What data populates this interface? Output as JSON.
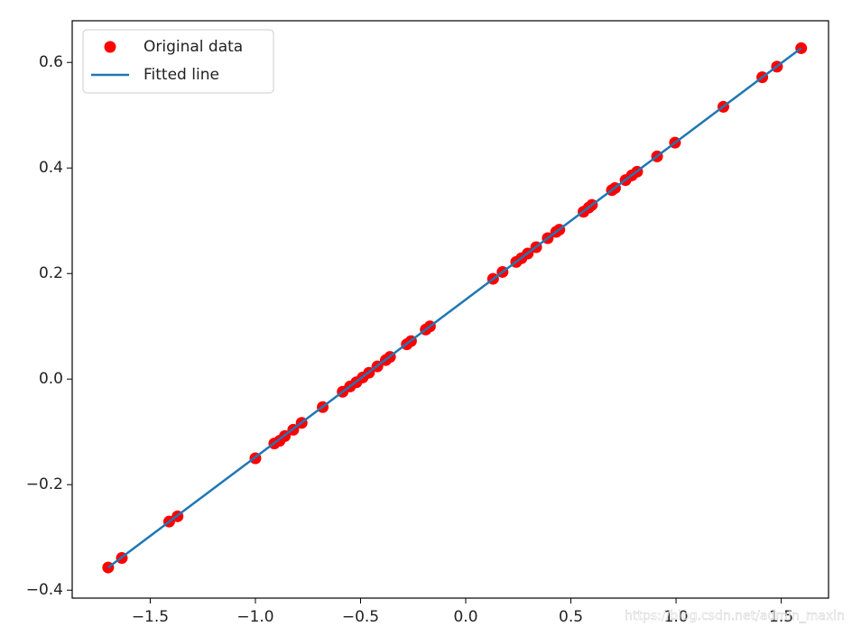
{
  "chart_data": {
    "type": "scatter-line",
    "series": [
      {
        "name": "Original data",
        "color": "#ff0000",
        "kind": "scatter",
        "x": [
          -1.7,
          -1.635,
          -1.41,
          -1.37,
          -1.0,
          -0.91,
          -0.885,
          -0.86,
          -0.82,
          -0.78,
          -0.68,
          -0.585,
          -0.55,
          -0.52,
          -0.49,
          -0.46,
          -0.42,
          -0.38,
          -0.36,
          -0.28,
          -0.26,
          -0.19,
          -0.17,
          0.13,
          0.175,
          0.24,
          0.265,
          0.295,
          0.335,
          0.39,
          0.43,
          0.445,
          0.56,
          0.585,
          0.6,
          0.695,
          0.71,
          0.76,
          0.79,
          0.815,
          0.91,
          0.995,
          1.225,
          1.41,
          1.48,
          1.595
        ],
        "values": [
          -0.357,
          -0.339,
          -0.27,
          -0.26,
          -0.15,
          -0.122,
          -0.117,
          -0.108,
          -0.096,
          -0.083,
          -0.053,
          -0.024,
          -0.014,
          -0.006,
          0.003,
          0.012,
          0.024,
          0.036,
          0.042,
          0.066,
          0.072,
          0.094,
          0.1,
          0.19,
          0.203,
          0.222,
          0.229,
          0.238,
          0.25,
          0.267,
          0.279,
          0.283,
          0.317,
          0.325,
          0.33,
          0.358,
          0.362,
          0.377,
          0.386,
          0.393,
          0.422,
          0.448,
          0.516,
          0.572,
          0.592,
          0.627
        ]
      },
      {
        "name": "Fitted line",
        "color": "#1f77b4",
        "kind": "line",
        "x": [
          -1.7,
          1.595
        ],
        "values": [
          -0.357,
          0.627
        ]
      }
    ],
    "xlim": [
      -1.871,
      1.725
    ],
    "ylim": [
      -0.415,
      0.679
    ],
    "xticks": [
      {
        "value": -1.5,
        "label": "−1.5"
      },
      {
        "value": -1.0,
        "label": "−1.0"
      },
      {
        "value": -0.5,
        "label": "−0.5"
      },
      {
        "value": 0.0,
        "label": "0.0"
      },
      0.5,
      {
        "value": 1.0,
        "label": "1.0"
      },
      1.5
    ],
    "yticks": [
      {
        "value": -0.4,
        "label": "−0.4"
      },
      {
        "value": -0.2,
        "label": "−0.2"
      },
      {
        "value": 0.0,
        "label": "0.0"
      },
      0.2,
      0.4,
      0.6
    ],
    "legend": "upper left",
    "watermark": "https://blog.csdn.net/admin_maxin"
  }
}
